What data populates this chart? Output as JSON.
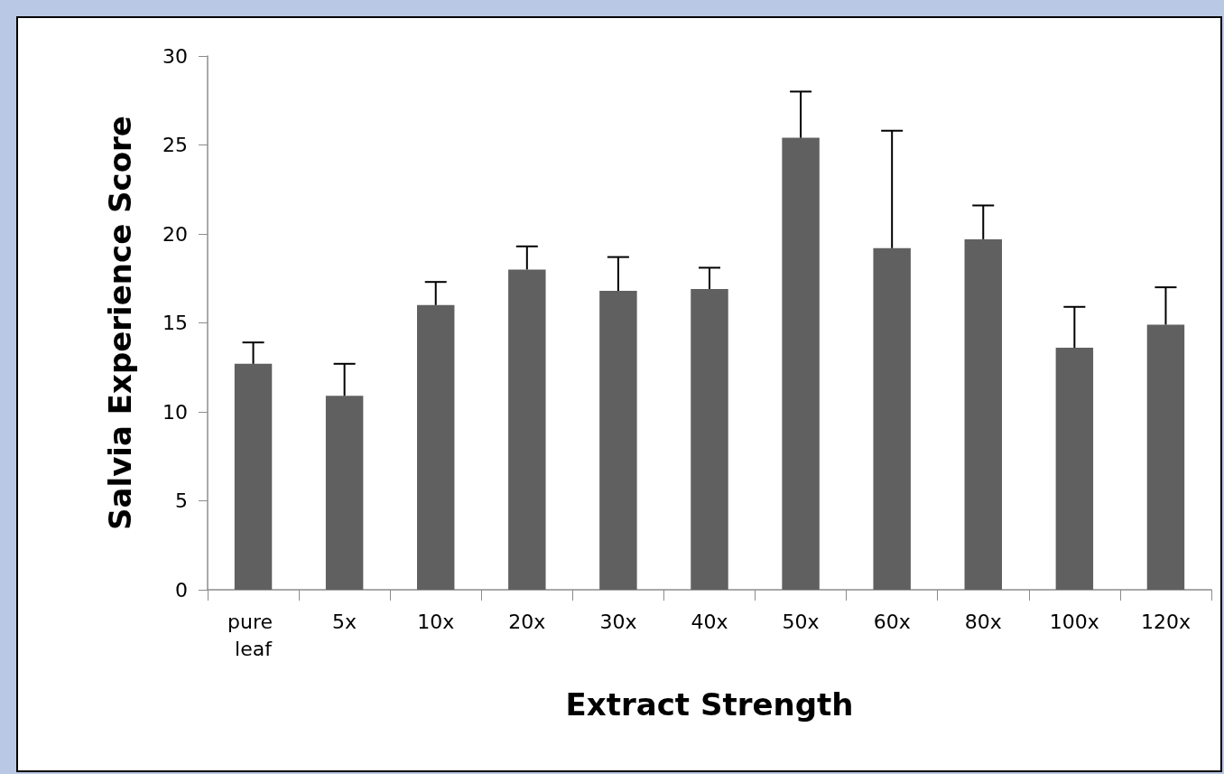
{
  "chart_data": {
    "type": "bar",
    "xlabel": "Extract Strength",
    "ylabel": "Salvia Experience Score",
    "categories": [
      "pure leaf",
      "5x",
      "10x",
      "20x",
      "30x",
      "40x",
      "50x",
      "60x",
      "80x",
      "100x",
      "120x"
    ],
    "values": [
      12.7,
      10.9,
      16.0,
      18.0,
      16.8,
      16.9,
      25.4,
      19.2,
      19.7,
      13.6,
      14.9
    ],
    "errors": [
      [
        12.7,
        13.9
      ],
      [
        10.9,
        12.7
      ],
      [
        16.0,
        17.3
      ],
      [
        18.0,
        19.3
      ],
      [
        16.8,
        18.7
      ],
      [
        16.9,
        18.1
      ],
      [
        25.4,
        28.0
      ],
      [
        19.2,
        25.8
      ],
      [
        19.7,
        21.6
      ],
      [
        13.6,
        15.9
      ],
      [
        14.9,
        17.0
      ]
    ],
    "color": "#606060",
    "ylim": [
      0,
      30
    ],
    "yticks": [
      0,
      5,
      10,
      15,
      20,
      25,
      30
    ],
    "grid": false
  }
}
